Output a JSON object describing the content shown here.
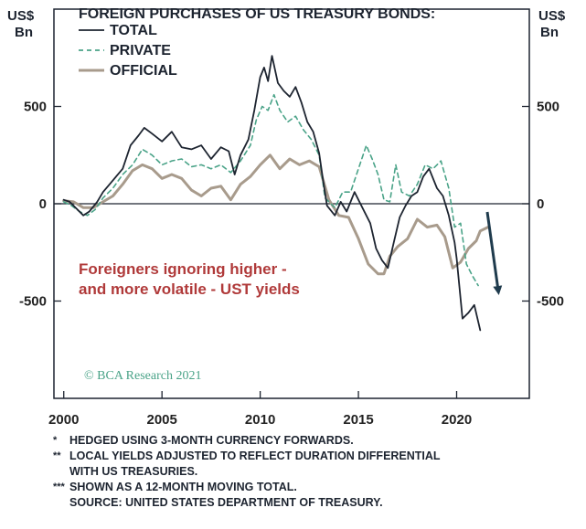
{
  "chart_data": {
    "type": "line",
    "title": "FOREIGN PURCHASES OF US TREASURY BONDS:",
    "units_left": [
      "US$",
      "Bn"
    ],
    "units_right": [
      "US$",
      "Bn"
    ],
    "xlim": [
      1999.5,
      2023.7
    ],
    "ylim": [
      -1000,
      1000
    ],
    "x_ticks": [
      2000,
      2005,
      2010,
      2015,
      2020
    ],
    "y_ticks": [
      {
        "value": 500,
        "label": "500"
      },
      {
        "value": 0,
        "label": "0"
      },
      {
        "value": -500,
        "label": "-500"
      }
    ],
    "legend": [
      {
        "name": "TOTAL",
        "color": "#1d2430",
        "style": "solid"
      },
      {
        "name": "PRIVATE",
        "color": "#4aa388",
        "style": "dashed"
      },
      {
        "name": "OFFICIAL",
        "color": "#a89b8c",
        "style": "solid"
      }
    ],
    "series": [
      {
        "name": "TOTAL",
        "color": "#1d2430",
        "style": "solid",
        "points": [
          [
            2000.0,
            20
          ],
          [
            2000.3,
            10
          ],
          [
            2000.6,
            -20
          ],
          [
            2001.0,
            -60
          ],
          [
            2001.3,
            -40
          ],
          [
            2001.7,
            10
          ],
          [
            2002.0,
            60
          ],
          [
            2002.5,
            120
          ],
          [
            2003.0,
            180
          ],
          [
            2003.4,
            300
          ],
          [
            2003.8,
            350
          ],
          [
            2004.1,
            390
          ],
          [
            2004.5,
            360
          ],
          [
            2005.0,
            320
          ],
          [
            2005.5,
            370
          ],
          [
            2006.0,
            290
          ],
          [
            2006.5,
            280
          ],
          [
            2007.0,
            300
          ],
          [
            2007.5,
            230
          ],
          [
            2008.0,
            290
          ],
          [
            2008.4,
            270
          ],
          [
            2008.7,
            150
          ],
          [
            2009.0,
            250
          ],
          [
            2009.4,
            330
          ],
          [
            2009.7,
            480
          ],
          [
            2010.0,
            650
          ],
          [
            2010.2,
            700
          ],
          [
            2010.4,
            630
          ],
          [
            2010.6,
            760
          ],
          [
            2010.9,
            620
          ],
          [
            2011.2,
            580
          ],
          [
            2011.5,
            550
          ],
          [
            2011.8,
            600
          ],
          [
            2012.1,
            520
          ],
          [
            2012.4,
            420
          ],
          [
            2012.7,
            370
          ],
          [
            2013.0,
            260
          ],
          [
            2013.2,
            120
          ],
          [
            2013.4,
            -10
          ],
          [
            2013.8,
            -60
          ],
          [
            2014.1,
            10
          ],
          [
            2014.4,
            -40
          ],
          [
            2014.8,
            60
          ],
          [
            2015.2,
            -20
          ],
          [
            2015.6,
            -100
          ],
          [
            2015.9,
            -230
          ],
          [
            2016.2,
            -290
          ],
          [
            2016.5,
            -330
          ],
          [
            2016.8,
            -200
          ],
          [
            2017.1,
            -70
          ],
          [
            2017.4,
            -10
          ],
          [
            2017.7,
            40
          ],
          [
            2018.0,
            60
          ],
          [
            2018.3,
            140
          ],
          [
            2018.6,
            180
          ],
          [
            2019.0,
            80
          ],
          [
            2019.3,
            40
          ],
          [
            2019.6,
            -60
          ],
          [
            2019.9,
            -200
          ],
          [
            2020.0,
            -280
          ],
          [
            2020.3,
            -590
          ],
          [
            2020.6,
            -560
          ],
          [
            2020.9,
            -520
          ],
          [
            2021.2,
            -650
          ]
        ]
      },
      {
        "name": "PRIVATE",
        "color": "#4aa388",
        "style": "dashed",
        "points": [
          [
            2000.0,
            10
          ],
          [
            2000.4,
            -10
          ],
          [
            2000.8,
            -40
          ],
          [
            2001.2,
            -60
          ],
          [
            2001.6,
            -30
          ],
          [
            2002.0,
            30
          ],
          [
            2002.5,
            80
          ],
          [
            2003.0,
            150
          ],
          [
            2003.5,
            200
          ],
          [
            2004.0,
            280
          ],
          [
            2004.5,
            250
          ],
          [
            2005.0,
            200
          ],
          [
            2005.5,
            220
          ],
          [
            2006.0,
            230
          ],
          [
            2006.5,
            190
          ],
          [
            2007.0,
            200
          ],
          [
            2007.5,
            180
          ],
          [
            2008.0,
            200
          ],
          [
            2008.5,
            160
          ],
          [
            2009.0,
            220
          ],
          [
            2009.5,
            300
          ],
          [
            2009.8,
            430
          ],
          [
            2010.1,
            500
          ],
          [
            2010.4,
            480
          ],
          [
            2010.7,
            560
          ],
          [
            2011.0,
            480
          ],
          [
            2011.4,
            420
          ],
          [
            2011.8,
            450
          ],
          [
            2012.2,
            380
          ],
          [
            2012.6,
            330
          ],
          [
            2013.0,
            250
          ],
          [
            2013.3,
            30
          ],
          [
            2013.8,
            -20
          ],
          [
            2014.2,
            60
          ],
          [
            2014.6,
            60
          ],
          [
            2015.0,
            180
          ],
          [
            2015.4,
            300
          ],
          [
            2015.7,
            230
          ],
          [
            2016.0,
            150
          ],
          [
            2016.3,
            20
          ],
          [
            2016.6,
            10
          ],
          [
            2016.9,
            200
          ],
          [
            2017.2,
            60
          ],
          [
            2017.6,
            40
          ],
          [
            2018.0,
            100
          ],
          [
            2018.4,
            200
          ],
          [
            2018.8,
            180
          ],
          [
            2019.2,
            220
          ],
          [
            2019.6,
            80
          ],
          [
            2019.9,
            -120
          ],
          [
            2020.2,
            -100
          ],
          [
            2020.5,
            -310
          ],
          [
            2020.8,
            -370
          ],
          [
            2021.1,
            -420
          ]
        ]
      },
      {
        "name": "OFFICIAL",
        "color": "#a89b8c",
        "style": "solid",
        "points": [
          [
            2000.0,
            15
          ],
          [
            2000.5,
            10
          ],
          [
            2001.0,
            -20
          ],
          [
            2001.5,
            -20
          ],
          [
            2002.0,
            10
          ],
          [
            2002.5,
            40
          ],
          [
            2003.0,
            100
          ],
          [
            2003.5,
            170
          ],
          [
            2004.0,
            200
          ],
          [
            2004.5,
            180
          ],
          [
            2005.0,
            130
          ],
          [
            2005.5,
            150
          ],
          [
            2006.0,
            130
          ],
          [
            2006.5,
            70
          ],
          [
            2007.0,
            40
          ],
          [
            2007.5,
            80
          ],
          [
            2008.0,
            90
          ],
          [
            2008.5,
            20
          ],
          [
            2009.0,
            100
          ],
          [
            2009.5,
            140
          ],
          [
            2010.0,
            200
          ],
          [
            2010.5,
            250
          ],
          [
            2011.0,
            180
          ],
          [
            2011.5,
            230
          ],
          [
            2012.0,
            200
          ],
          [
            2012.5,
            220
          ],
          [
            2013.0,
            190
          ],
          [
            2013.5,
            20
          ],
          [
            2014.0,
            -60
          ],
          [
            2014.5,
            -70
          ],
          [
            2015.0,
            -180
          ],
          [
            2015.5,
            -310
          ],
          [
            2016.0,
            -360
          ],
          [
            2016.3,
            -360
          ],
          [
            2016.6,
            -270
          ],
          [
            2017.0,
            -220
          ],
          [
            2017.5,
            -180
          ],
          [
            2018.0,
            -80
          ],
          [
            2018.5,
            -120
          ],
          [
            2019.0,
            -110
          ],
          [
            2019.4,
            -170
          ],
          [
            2019.8,
            -330
          ],
          [
            2020.2,
            -300
          ],
          [
            2020.6,
            -230
          ],
          [
            2021.0,
            -190
          ],
          [
            2021.2,
            -140
          ],
          [
            2021.6,
            -120
          ]
        ]
      }
    ],
    "annotation": [
      "Foreigners ignoring higher -",
      "and more volatile - UST yields"
    ],
    "grid": false,
    "legend_position": "top-left"
  },
  "credit": "© BCA Research 2021",
  "footnotes": [
    {
      "mark": "*",
      "lines": [
        "HEDGED USING 3-MONTH CURRENCY FORWARDS."
      ]
    },
    {
      "mark": "**",
      "lines": [
        "LOCAL YIELDS ADJUSTED TO REFLECT DURATION DIFFERENTIAL",
        "WITH US TREASURIES."
      ]
    },
    {
      "mark": "***",
      "lines": [
        "SHOWN AS A 12-MONTH MOVING TOTAL."
      ]
    },
    {
      "mark": "",
      "lines": [
        "SOURCE: UNITED STATES DEPARTMENT OF TREASURY."
      ]
    }
  ]
}
